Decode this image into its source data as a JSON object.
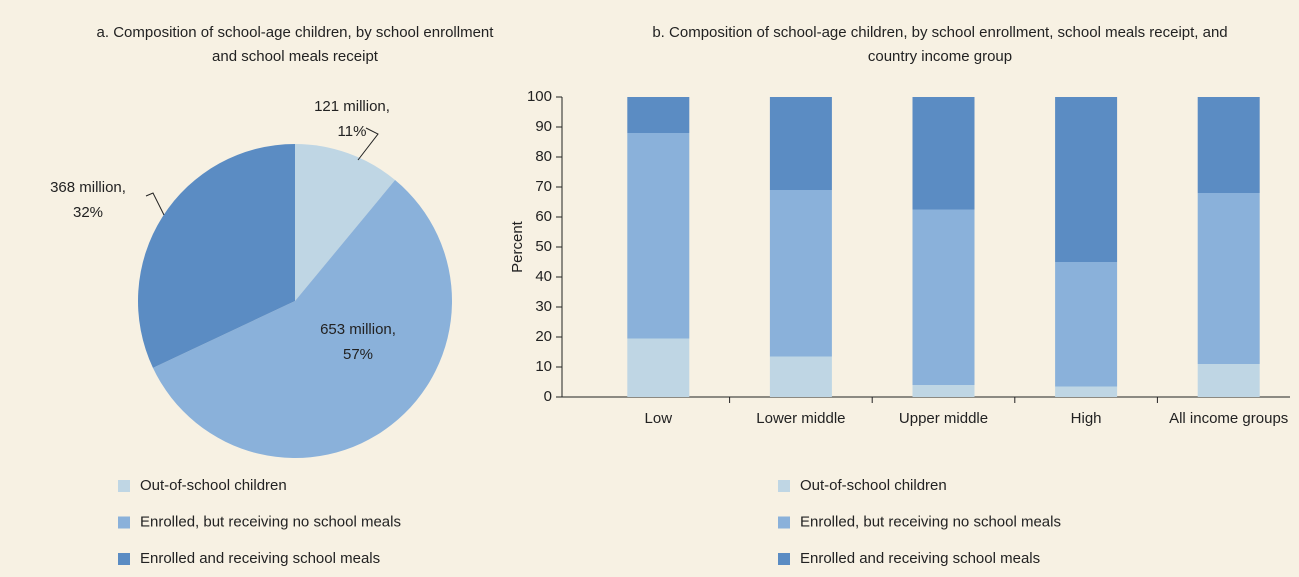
{
  "chart_data": [
    {
      "type": "pie",
      "title": "a. Composition of school-age children, by school enrollment and school meals receipt",
      "categories": [
        "Out-of-school children",
        "Enrolled, but receiving no school meals",
        "Enrolled and receiving school meals"
      ],
      "values": [
        11,
        57,
        32
      ],
      "value_labels": [
        [
          "121 million,",
          "11%"
        ],
        [
          "653 million,",
          "57%"
        ],
        [
          "368 million,",
          "32%"
        ]
      ],
      "colors": [
        "#bfd6e4",
        "#8ab1da",
        "#5b8cc3"
      ]
    },
    {
      "type": "stacked_bar",
      "title": "b. Composition of school-age children, by school enrollment, school meals receipt, and country income group",
      "y_label": "Percent",
      "categories": [
        "Low",
        "Lower middle",
        "Upper middle",
        "High",
        "All income groups"
      ],
      "series": [
        {
          "name": "Out-of-school children",
          "color": "#bfd6e4",
          "values": [
            19.5,
            13.5,
            4,
            3.5,
            11
          ]
        },
        {
          "name": "Enrolled, but receiving no school meals",
          "color": "#8ab1da",
          "values": [
            68.5,
            55.5,
            58.5,
            41.5,
            57
          ]
        },
        {
          "name": "Enrolled and receiving school meals",
          "color": "#5b8cc3",
          "values": [
            12,
            31,
            37.5,
            55,
            32
          ]
        }
      ],
      "ylim": [
        0,
        100
      ],
      "yticks": [
        0,
        10,
        20,
        30,
        40,
        50,
        60,
        70,
        80,
        90,
        100
      ]
    }
  ]
}
